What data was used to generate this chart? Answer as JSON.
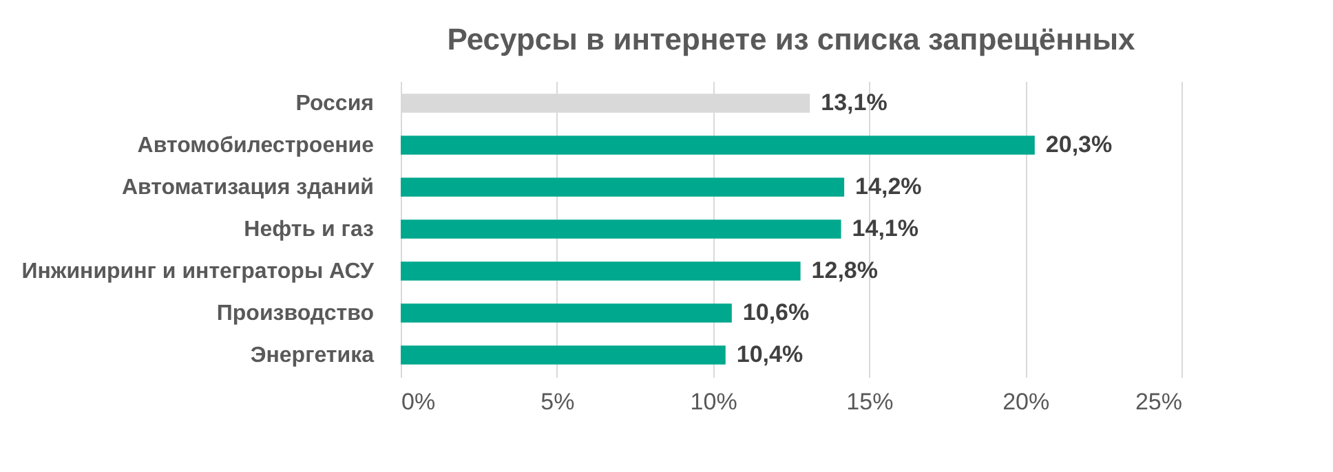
{
  "chart_data": {
    "type": "bar",
    "orientation": "horizontal",
    "title": "Ресурсы в интернете из списка запрещённых",
    "categories": [
      "Россия",
      "Автомобилестроение",
      "Автоматизация зданий",
      "Нефть и газ",
      "Инжиниринг и интеграторы АСУ",
      "Производство",
      "Энергетика"
    ],
    "values": [
      13.1,
      20.3,
      14.2,
      14.1,
      12.8,
      10.6,
      10.4
    ],
    "colors": [
      "#d9d9d9",
      "#00a88e",
      "#00a88e",
      "#00a88e",
      "#00a88e",
      "#00a88e",
      "#00a88e"
    ],
    "value_labels": [
      "13,1%",
      "20,3%",
      "14,2%",
      "14,1%",
      "12,8%",
      "10,6%",
      "10,4%"
    ],
    "xlim": [
      0,
      25
    ],
    "xticks": [
      {
        "value": 0,
        "label": "0%"
      },
      {
        "value": 5,
        "label": "5%"
      },
      {
        "value": 10,
        "label": "10%"
      },
      {
        "value": 15,
        "label": "15%"
      },
      {
        "value": 20,
        "label": "20%"
      },
      {
        "value": 25,
        "label": "25%"
      }
    ],
    "grid": "x"
  }
}
